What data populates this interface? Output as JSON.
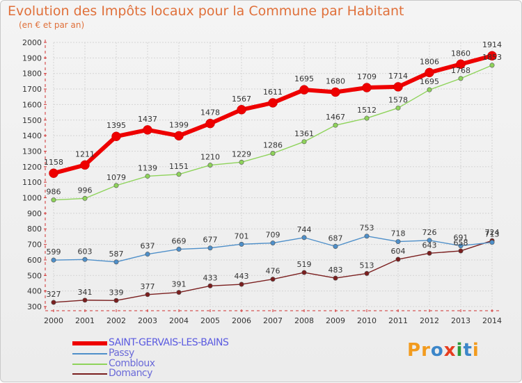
{
  "title": "Evolution des Impôts locaux pour la Commune par Habitant",
  "subtitle": "(en € et par an)",
  "logo": {
    "text": "Proxiti",
    "colors": [
      "#f29b1e",
      "#f29b1e",
      "#3c86c9",
      "#e63d1f",
      "#2c9a3a",
      "#3c86c9",
      "#f29b1e"
    ]
  },
  "chart_data": {
    "type": "line",
    "x": [
      "2000",
      "2001",
      "2002",
      "2003",
      "2004",
      "2005",
      "2006",
      "2007",
      "2008",
      "2009",
      "2010",
      "2011",
      "2012",
      "2013",
      "2014"
    ],
    "ylim": [
      300,
      2000
    ],
    "yticks": [
      "300",
      "400",
      "500",
      "600",
      "700",
      "800",
      "900",
      "1000",
      "1100",
      "1200",
      "1300",
      "1400",
      "1500",
      "1600",
      "1700",
      "1800",
      "1900",
      "2000"
    ],
    "grid": true,
    "legend_position": "bottom-left",
    "series": [
      {
        "name": "SAINT-GERVAIS-LES-BAINS",
        "color": "#ee0000",
        "values": [
          1158,
          1211,
          1395,
          1437,
          1399,
          1478,
          1567,
          1611,
          1695,
          1680,
          1709,
          1714,
          1806,
          1860,
          1914
        ],
        "labels": [
          "1158",
          "1211",
          "1395",
          "1437",
          "1399",
          "1478",
          "1567",
          "1611",
          "1695",
          "1680",
          "1709",
          "1714",
          "1806",
          "1860",
          "1914"
        ]
      },
      {
        "name": "Passy",
        "color": "#4e8fc9",
        "values": [
          599,
          603,
          587,
          637,
          669,
          677,
          701,
          709,
          744,
          687,
          753,
          718,
          726,
          691,
          713
        ],
        "labels": [
          "599",
          "603",
          "587",
          "637",
          "669",
          "677",
          "701",
          "709",
          "744",
          "687",
          "753",
          "718",
          "726",
          "691",
          "713"
        ]
      },
      {
        "name": "Combloux",
        "color": "#8ed35a",
        "values": [
          986,
          996,
          1079,
          1139,
          1151,
          1210,
          1229,
          1286,
          1361,
          1467,
          1512,
          1578,
          1695,
          1768,
          1853
        ],
        "labels": [
          "986",
          "996",
          "1079",
          "1139",
          "1151",
          "1210",
          "1229",
          "1286",
          "1361",
          "1467",
          "1512",
          "1578",
          "1695",
          "1768",
          "1853"
        ]
      },
      {
        "name": "Domancy",
        "color": "#7a1e1e",
        "values": [
          327,
          341,
          339,
          377,
          391,
          433,
          443,
          476,
          519,
          483,
          513,
          604,
          643,
          658,
          724
        ],
        "labels": [
          "327",
          "341",
          "339",
          "377",
          "391",
          "433",
          "443",
          "476",
          "519",
          "483",
          "513",
          "604",
          "643",
          "658",
          "724"
        ]
      }
    ]
  }
}
